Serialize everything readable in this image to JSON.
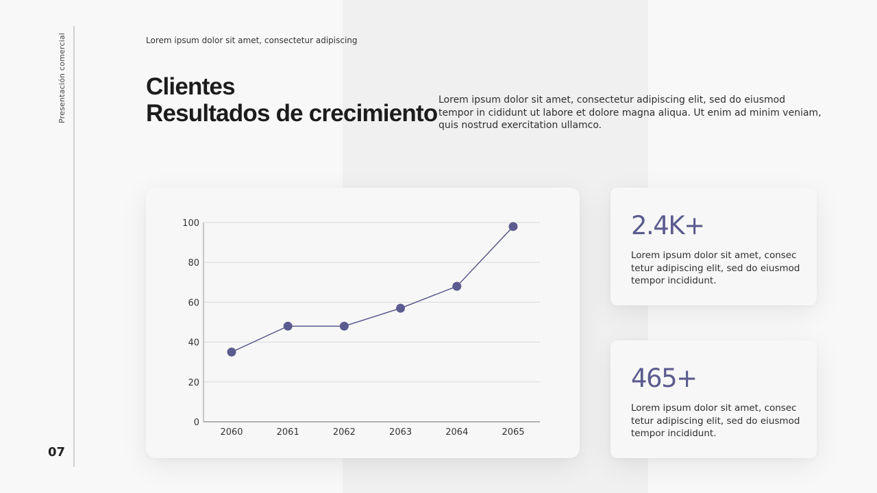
{
  "sidebar": {
    "label": "Presentación comercial",
    "page_number": "07"
  },
  "header": {
    "eyebrow": "Lorem ipsum dolor sit amet, consectetur adipiscing",
    "title_line1": "Clientes",
    "title_line2": "Resultados de crecimiento",
    "intro": "Lorem ipsum dolor sit amet, consectetur adipiscing elit, sed do eiusmod tempor in cididunt ut labore et dolore magna aliqua. Ut enim ad minim veniam, quis nostrud exercitation ullamco."
  },
  "stats": [
    {
      "value": "2.4K+",
      "description": "Lorem ipsum dolor sit amet, consec tetur adipiscing elit, sed do eiusmod tempor incididunt."
    },
    {
      "value": "465+",
      "description": "Lorem ipsum dolor sit amet, consec tetur adipiscing elit, sed do eiusmod tempor incididunt."
    }
  ],
  "colors": {
    "accent": "#5b5b8f",
    "band": "#f0f0f0",
    "background": "#f8f8f8",
    "gridline": "#d9d9d9"
  },
  "chart_data": {
    "type": "line",
    "title": "",
    "xlabel": "",
    "ylabel": "",
    "categories": [
      "2060",
      "2061",
      "2062",
      "2063",
      "2064",
      "2065"
    ],
    "series": [
      {
        "name": "Clientes",
        "values": [
          35,
          48,
          48,
          57,
          68,
          98
        ],
        "color": "#5b5b8f",
        "markers": true
      }
    ],
    "ylim": [
      0,
      100
    ],
    "yticks": [
      0,
      20,
      40,
      60,
      80,
      100
    ],
    "grid": true,
    "legend": "none"
  }
}
